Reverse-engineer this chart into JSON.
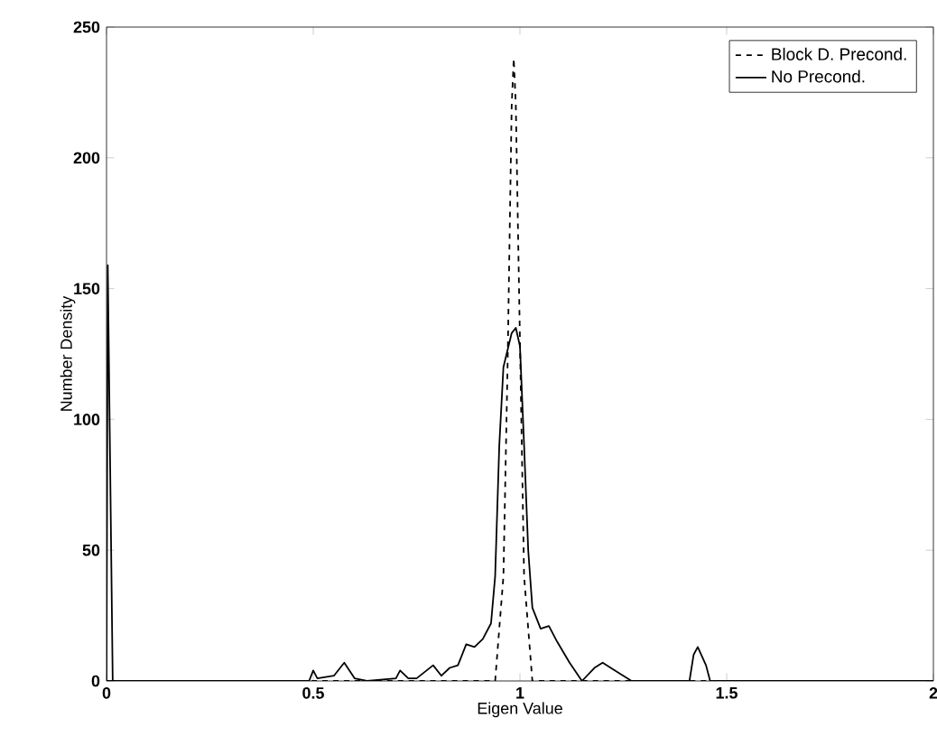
{
  "chart_data": {
    "type": "line",
    "xlabel": "Eigen Value",
    "ylabel": "Number Density",
    "xlim": [
      0,
      2
    ],
    "ylim": [
      0,
      250
    ],
    "xticks": [
      0,
      0.5,
      1,
      1.5,
      2
    ],
    "yticks": [
      0,
      50,
      100,
      150,
      200,
      250
    ],
    "grid": false,
    "legend": "top right",
    "marker": "none",
    "series": [
      {
        "name": "Block D. Precond.",
        "color": "#000000",
        "line_style": "dashed",
        "x": [
          0,
          0.94,
          0.96,
          0.97,
          0.98,
          0.985,
          0.99,
          1.0,
          1.01,
          1.03,
          2
        ],
        "values": [
          0,
          0,
          40,
          120,
          220,
          238,
          220,
          130,
          40,
          0,
          0
        ]
      },
      {
        "name": "No Precond.",
        "color": "#000000",
        "line_style": "solid",
        "x": [
          0,
          0.003,
          0.015,
          0.49,
          0.5,
          0.51,
          0.55,
          0.575,
          0.6,
          0.63,
          0.7,
          0.71,
          0.73,
          0.75,
          0.79,
          0.81,
          0.83,
          0.85,
          0.87,
          0.89,
          0.91,
          0.93,
          0.94,
          0.95,
          0.96,
          0.98,
          0.99,
          1.0,
          1.01,
          1.02,
          1.03,
          1.05,
          1.07,
          1.09,
          1.12,
          1.15,
          1.18,
          1.2,
          1.23,
          1.27,
          1.41,
          1.42,
          1.43,
          1.45,
          1.46,
          2
        ],
        "values": [
          0,
          159,
          0,
          0,
          4,
          1,
          2,
          7,
          1,
          0,
          1,
          4,
          1,
          1,
          6,
          2,
          5,
          6,
          14,
          13,
          16,
          22,
          40,
          90,
          120,
          133,
          135,
          128,
          90,
          50,
          28,
          20,
          21,
          15,
          7,
          0,
          5,
          7,
          4,
          0,
          0,
          10,
          13,
          6,
          0,
          0
        ]
      }
    ]
  }
}
